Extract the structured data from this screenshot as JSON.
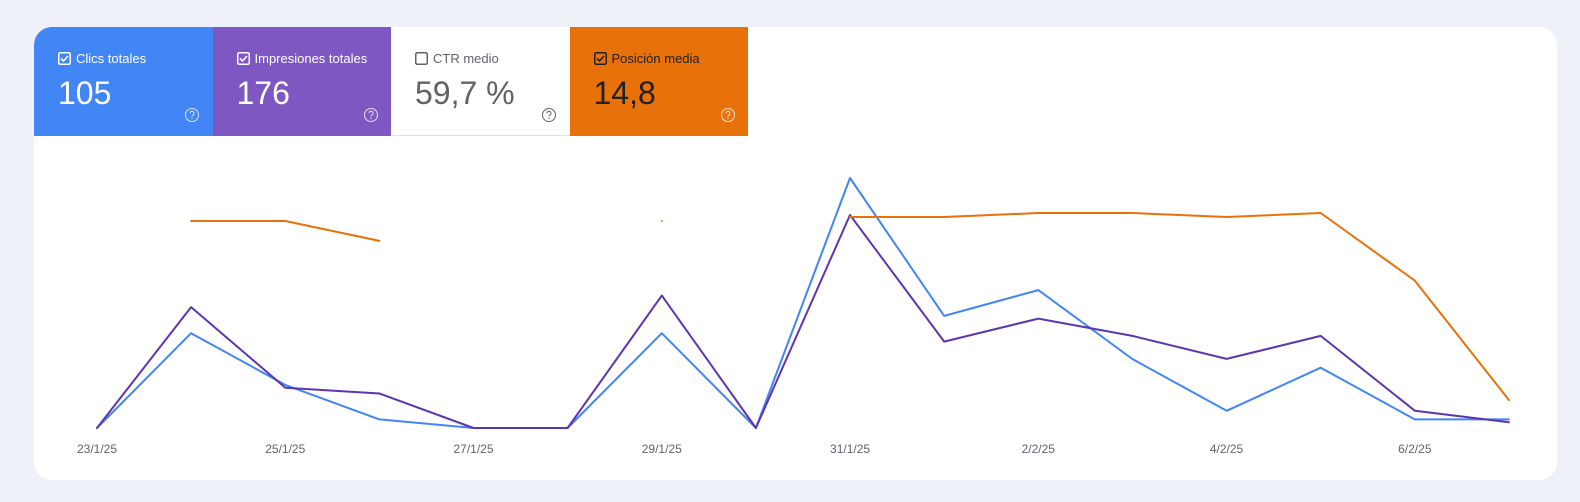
{
  "cards": [
    {
      "label": "Clics totales",
      "value": "105",
      "checked": true,
      "color": "#4285f4"
    },
    {
      "label": "Impresiones totales",
      "value": "176",
      "checked": true,
      "color": "#7e57c2"
    },
    {
      "label": "CTR medio",
      "value": "59,7 %",
      "checked": false,
      "color": "#ffffff"
    },
    {
      "label": "Posición media",
      "value": "14,8",
      "checked": true,
      "color": "#e8710a"
    }
  ],
  "chart_data": {
    "type": "line",
    "categories": [
      "23/1/25",
      null,
      "25/1/25",
      null,
      "27/1/25",
      null,
      "29/1/25",
      null,
      "31/1/25",
      null,
      "2/2/25",
      null,
      "4/2/25",
      null,
      "6/2/25",
      null
    ],
    "series": [
      {
        "color": "#4285f4",
        "values": [
          0,
          11,
          5,
          1,
          0,
          0,
          11,
          0,
          29,
          13,
          16,
          8,
          2,
          7,
          1,
          1
        ]
      },
      {
        "color": "#5e35b1",
        "values": [
          0,
          21,
          7,
          6,
          0,
          0,
          23,
          0,
          37,
          15,
          19,
          16,
          12,
          16,
          3,
          1
        ]
      },
      {
        "color": "#e8710a",
        "inverted": true,
        "values": [
          null,
          10,
          10,
          15,
          null,
          null,
          10,
          null,
          9,
          9,
          8,
          8,
          9,
          8,
          25,
          55
        ]
      }
    ]
  }
}
